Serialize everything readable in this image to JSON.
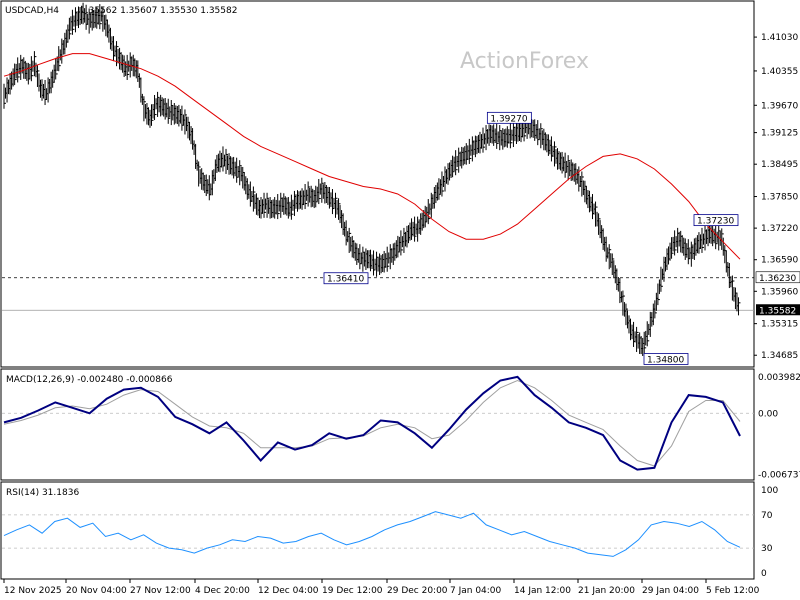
{
  "header": {
    "symbol_timeframe": "USDCAD,H4",
    "ohlc": "1.35562 1.35607 1.35530 1.35582"
  },
  "watermark": "ActionForex",
  "colors": {
    "price": "#000000",
    "ma": "#e00000",
    "macd": "#000080",
    "signal": "#a0a0a0",
    "rsi": "#1e90ff",
    "grid": "#bbbbbb",
    "frame": "#000000"
  },
  "chart_data": [
    {
      "type": "line",
      "panel": "price",
      "yaxis_ticks": [
        "1.41030",
        "1.40355",
        "1.39670",
        "1.39125",
        "1.38495",
        "1.37850",
        "1.37220",
        "1.36590",
        "1.35960",
        "1.35315",
        "1.34685"
      ],
      "ylim": [
        1.3455,
        1.4165
      ],
      "x_ticks": [
        "12 Nov 2025",
        "20 Nov 04:00",
        "27 Nov 12:00",
        "4 Dec 20:00",
        "12 Dec 04:00",
        "19 Dec 12:00",
        "29 Dec 20:00",
        "7 Jan 04:00",
        "14 Jan 12:00",
        "21 Jan 20:00",
        "29 Jan 04:00",
        "5 Feb 12:00"
      ],
      "close_series": [
        1.3985,
        1.401,
        1.4035,
        1.4045,
        1.403,
        1.405,
        1.4,
        1.399,
        1.402,
        1.406,
        1.409,
        1.413,
        1.414,
        1.415,
        1.4135,
        1.414,
        1.4145,
        1.412,
        1.408,
        1.406,
        1.404,
        1.405,
        1.4035,
        1.396,
        1.394,
        1.397,
        1.3965,
        1.3955,
        1.395,
        1.3945,
        1.393,
        1.39,
        1.383,
        1.381,
        1.38,
        1.385,
        1.386,
        1.385,
        1.384,
        1.383,
        1.38,
        1.378,
        1.376,
        1.377,
        1.376,
        1.3765,
        1.377,
        1.376,
        1.3775,
        1.378,
        1.379,
        1.378,
        1.38,
        1.379,
        1.3775,
        1.376,
        1.372,
        1.369,
        1.367,
        1.366,
        1.366,
        1.365,
        1.365,
        1.366,
        1.367,
        1.369,
        1.37,
        1.372,
        1.372,
        1.374,
        1.376,
        1.379,
        1.381,
        1.383,
        1.385,
        1.386,
        1.387,
        1.388,
        1.389,
        1.39,
        1.391,
        1.3905,
        1.39,
        1.3905,
        1.391,
        1.3915,
        1.3925,
        1.392,
        1.391,
        1.3895,
        1.388,
        1.386,
        1.385,
        1.384,
        1.383,
        1.381,
        1.378,
        1.376,
        1.372,
        1.368,
        1.365,
        1.361,
        1.356,
        1.352,
        1.35,
        1.3485,
        1.352,
        1.356,
        1.362,
        1.366,
        1.369,
        1.37,
        1.368,
        1.367,
        1.369,
        1.37,
        1.371,
        1.3705,
        1.37,
        1.364,
        1.359,
        1.3558
      ],
      "ma_series": [
        1.4025,
        1.4035,
        1.4048,
        1.406,
        1.407,
        1.407,
        1.406,
        1.405,
        1.404,
        1.4025,
        1.4005,
        1.398,
        1.3955,
        1.393,
        1.3905,
        1.3885,
        1.387,
        1.3855,
        1.384,
        1.3825,
        1.3815,
        1.3805,
        1.38,
        1.379,
        1.377,
        1.374,
        1.3715,
        1.37,
        1.37,
        1.371,
        1.373,
        1.376,
        1.379,
        1.382,
        1.3845,
        1.3865,
        1.387,
        1.386,
        1.384,
        1.381,
        1.3775,
        1.373,
        1.3695,
        1.366
      ],
      "labels": [
        {
          "text": "1.39270",
          "x": 0.6417,
          "y": 1.3927
        },
        {
          "text": "1.36410",
          "x": 0.4375,
          "y": 1.3641
        },
        {
          "text": "1.37230",
          "x": 0.9,
          "y": 1.3723
        },
        {
          "text": "1.34800",
          "x": 0.8375,
          "y": 1.348
        }
      ],
      "current_price": "1.35582",
      "dashed_level": "1.36230",
      "dashed_level_value": 1.3623,
      "current_level_value": 1.35582
    },
    {
      "type": "line",
      "panel": "macd",
      "title": "MACD(12,26,9) -0.002480 -0.000866",
      "yaxis_ticks": [
        "0.003982",
        "0.00",
        "-0.006737"
      ],
      "ylim": [
        -0.0069,
        0.0041
      ],
      "macd_series": [
        -0.001,
        -0.0005,
        0.0003,
        0.0012,
        0.0006,
        0.0,
        0.0016,
        0.0026,
        0.0028,
        0.0018,
        -0.0004,
        -0.0012,
        -0.0022,
        -0.001,
        -0.003,
        -0.0052,
        -0.0032,
        -0.004,
        -0.0035,
        -0.0022,
        -0.0028,
        -0.0024,
        -0.0008,
        -0.001,
        -0.0022,
        -0.0038,
        -0.0018,
        0.0004,
        0.0022,
        0.0036,
        0.004,
        0.002,
        0.0006,
        -0.001,
        -0.0016,
        -0.0024,
        -0.0052,
        -0.0062,
        -0.006,
        -0.001,
        0.002,
        0.0018,
        0.0012,
        -0.0025
      ],
      "signal_series": [
        -0.0012,
        -0.0008,
        -0.0002,
        0.0006,
        0.0008,
        0.0005,
        0.001,
        0.002,
        0.0026,
        0.0024,
        0.001,
        -0.0004,
        -0.0014,
        -0.0016,
        -0.0022,
        -0.0038,
        -0.0038,
        -0.0038,
        -0.0036,
        -0.0028,
        -0.0027,
        -0.0025,
        -0.0016,
        -0.0012,
        -0.0016,
        -0.0028,
        -0.0024,
        -0.0008,
        0.0012,
        0.0028,
        0.0036,
        0.0028,
        0.0014,
        -0.0002,
        -0.001,
        -0.0018,
        -0.0036,
        -0.0052,
        -0.0058,
        -0.0036,
        0.0002,
        0.0014,
        0.0014,
        -0.0009
      ]
    },
    {
      "type": "line",
      "panel": "rsi",
      "title": "RSI(14) 31.1836",
      "yaxis_ticks": [
        "100",
        "70",
        "30",
        "0"
      ],
      "ylim": [
        0,
        100
      ],
      "rsi_series": [
        45,
        52,
        58,
        48,
        62,
        66,
        55,
        60,
        44,
        48,
        40,
        46,
        36,
        30,
        28,
        24,
        30,
        34,
        40,
        38,
        44,
        42,
        36,
        38,
        44,
        48,
        40,
        34,
        38,
        44,
        52,
        58,
        62,
        68,
        74,
        70,
        66,
        72,
        58,
        52,
        46,
        50,
        44,
        38,
        34,
        30,
        24,
        22,
        20,
        28,
        40,
        58,
        62,
        60,
        56,
        62,
        52,
        38,
        31
      ]
    }
  ]
}
